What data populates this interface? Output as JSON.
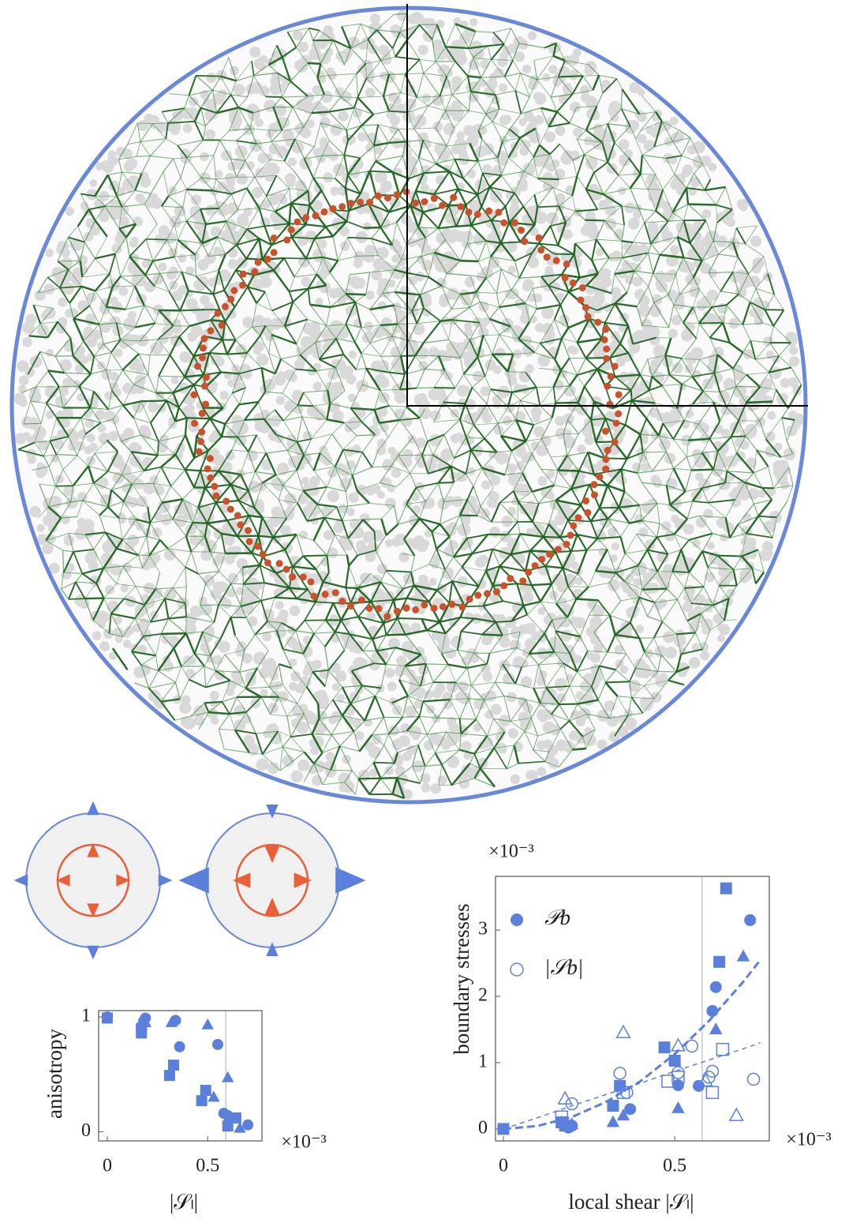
{
  "chart_data": [
    {
      "type": "scatter",
      "xlabel": "|𝒮ₗ|",
      "ylabel": "anisotropy",
      "x_multiplier": "×10⁻³",
      "xlim": [
        -0.043,
        0.77
      ],
      "ylim": [
        -0.08,
        1.055
      ],
      "xticks": [
        0,
        0.5
      ],
      "yticks": [
        0,
        1
      ],
      "reference_line_x": 0.59,
      "color": "#5b80dc",
      "series": [
        {
          "marker": "circle",
          "filled": true,
          "x": [
            0,
            0.19,
            0.18,
            0.34,
            0.36,
            0.55,
            0.58,
            0.6,
            0.7
          ],
          "values": [
            1.0,
            0.99,
            0.96,
            0.97,
            0.74,
            0.76,
            0.16,
            0.14,
            0.06
          ]
        },
        {
          "marker": "square",
          "filled": true,
          "x": [
            0,
            0.17,
            0.17,
            0.31,
            0.33,
            0.47,
            0.49,
            0.6,
            0.64
          ],
          "values": [
            0.99,
            0.86,
            0.9,
            0.49,
            0.58,
            0.27,
            0.36,
            0.05,
            0.12
          ]
        },
        {
          "marker": "triangle",
          "filled": true,
          "x": [
            0.17,
            0.19,
            0.32,
            0.5,
            0.53,
            0.6,
            0.66
          ],
          "values": [
            0.93,
            0.95,
            0.95,
            0.93,
            0.3,
            0.47,
            0.03
          ]
        }
      ]
    },
    {
      "type": "scatter",
      "xlabel": "local shear |𝒮ₗ|",
      "ylabel": "boundary stresses",
      "x_multiplier": "×10⁻³",
      "y_multiplier": "×10⁻³",
      "xlim": [
        -0.023,
        0.776
      ],
      "ylim": [
        -0.18,
        3.81
      ],
      "xticks": [
        0,
        0.5
      ],
      "yticks": [
        0,
        1,
        2,
        3
      ],
      "reference_line_x": 0.58,
      "color": "#5b80dc",
      "legend": [
        {
          "label": "𝒫b",
          "marker": "circle",
          "filled": true
        },
        {
          "label": "|𝒮b|",
          "marker": "circle",
          "filled": false
        }
      ],
      "series": [
        {
          "marker": "circle",
          "filled": true,
          "x": [
            0.19,
            0.2,
            0.37,
            0.51,
            0.57,
            0.61,
            0.62,
            0.72
          ],
          "values": [
            0.02,
            0.05,
            0.3,
            0.66,
            0.65,
            1.78,
            2.14,
            3.15
          ]
        },
        {
          "marker": "square",
          "filled": true,
          "x": [
            0,
            0.17,
            0.18,
            0.32,
            0.34,
            0.47,
            0.5,
            0.63,
            0.65
          ],
          "values": [
            0,
            0.1,
            0.05,
            0.35,
            0.65,
            1.23,
            1.03,
            2.52,
            3.63
          ]
        },
        {
          "marker": "triangle",
          "filled": true,
          "x": [
            0.17,
            0.2,
            0.32,
            0.35,
            0.5,
            0.51,
            0.62,
            0.7
          ],
          "values": [
            0.1,
            0.07,
            0.1,
            0.2,
            1.05,
            0.31,
            1.5,
            2.6
          ]
        },
        {
          "marker": "circle",
          "filled": false,
          "x": [
            0.2,
            0.36,
            0.34,
            0.51,
            0.55,
            0.61,
            0.6,
            0.73
          ],
          "values": [
            0.38,
            0.55,
            0.84,
            0.85,
            1.25,
            0.87,
            0.78,
            0.75
          ]
        },
        {
          "marker": "square",
          "filled": false,
          "x": [
            0.17,
            0.35,
            0.48,
            0.51,
            0.61,
            0.64
          ],
          "values": [
            0.18,
            0.55,
            0.72,
            0.78,
            0.55,
            1.2
          ]
        },
        {
          "marker": "triangle",
          "filled": false,
          "x": [
            0.18,
            0.35,
            0.51,
            0.59,
            0.68
          ],
          "values": [
            0.45,
            1.45,
            1.25,
            0.72,
            0.2
          ]
        }
      ],
      "fits": [
        {
          "style": "thick-dashed",
          "x": [
            0,
            0.1,
            0.2,
            0.3,
            0.4,
            0.5,
            0.6,
            0.7,
            0.75
          ],
          "values": [
            0,
            0.045,
            0.18,
            0.41,
            0.72,
            1.13,
            1.63,
            2.22,
            2.55
          ]
        },
        {
          "style": "thin-dashed",
          "x": [
            0,
            0.1,
            0.2,
            0.3,
            0.4,
            0.5,
            0.6,
            0.7,
            0.75
          ],
          "values": [
            0,
            0.17,
            0.35,
            0.52,
            0.69,
            0.87,
            1.04,
            1.21,
            1.3
          ]
        }
      ]
    }
  ]
}
